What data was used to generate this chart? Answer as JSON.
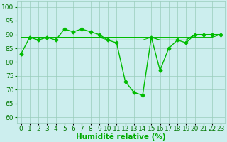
{
  "x": [
    0,
    1,
    2,
    3,
    4,
    5,
    6,
    7,
    8,
    9,
    10,
    11,
    12,
    13,
    14,
    15,
    16,
    17,
    18,
    19,
    20,
    21,
    22,
    23
  ],
  "y_main": [
    83,
    89,
    88,
    89,
    88,
    92,
    91,
    92,
    91,
    90,
    88,
    87,
    73,
    69,
    68,
    89,
    77,
    85,
    88,
    87,
    90,
    90,
    90,
    90
  ],
  "y_line1": [
    89,
    89,
    89,
    89,
    89,
    89,
    89,
    89,
    89,
    89,
    89,
    89,
    89,
    89,
    89,
    89,
    89,
    89,
    89,
    89,
    89,
    89,
    89,
    90
  ],
  "y_line2": [
    89,
    89,
    89,
    89,
    89,
    89,
    89,
    89,
    89,
    89,
    89,
    89,
    89,
    89,
    89,
    89,
    88,
    88,
    88,
    88,
    90,
    90,
    90,
    90
  ],
  "y_line3": [
    89,
    89,
    89,
    89,
    89,
    89,
    89,
    89,
    89,
    89,
    88,
    88,
    88,
    88,
    88,
    89,
    88,
    88,
    88,
    88,
    90,
    90,
    90,
    90
  ],
  "line_color": "#00bb00",
  "marker": "D",
  "marker_size": 2.5,
  "bg_color": "#cceeee",
  "grid_color": "#99ccbb",
  "xlabel": "Humidité relative (%)",
  "ylabel_ticks": [
    60,
    65,
    70,
    75,
    80,
    85,
    90,
    95,
    100
  ],
  "ylim": [
    58,
    102
  ],
  "xlim": [
    -0.5,
    23.5
  ],
  "xlabel_color": "#00aa00",
  "xlabel_fontsize": 7.5,
  "tick_fontsize": 6.5,
  "tick_color": "#007700",
  "linewidth": 1.0,
  "thin_linewidth": 0.7
}
